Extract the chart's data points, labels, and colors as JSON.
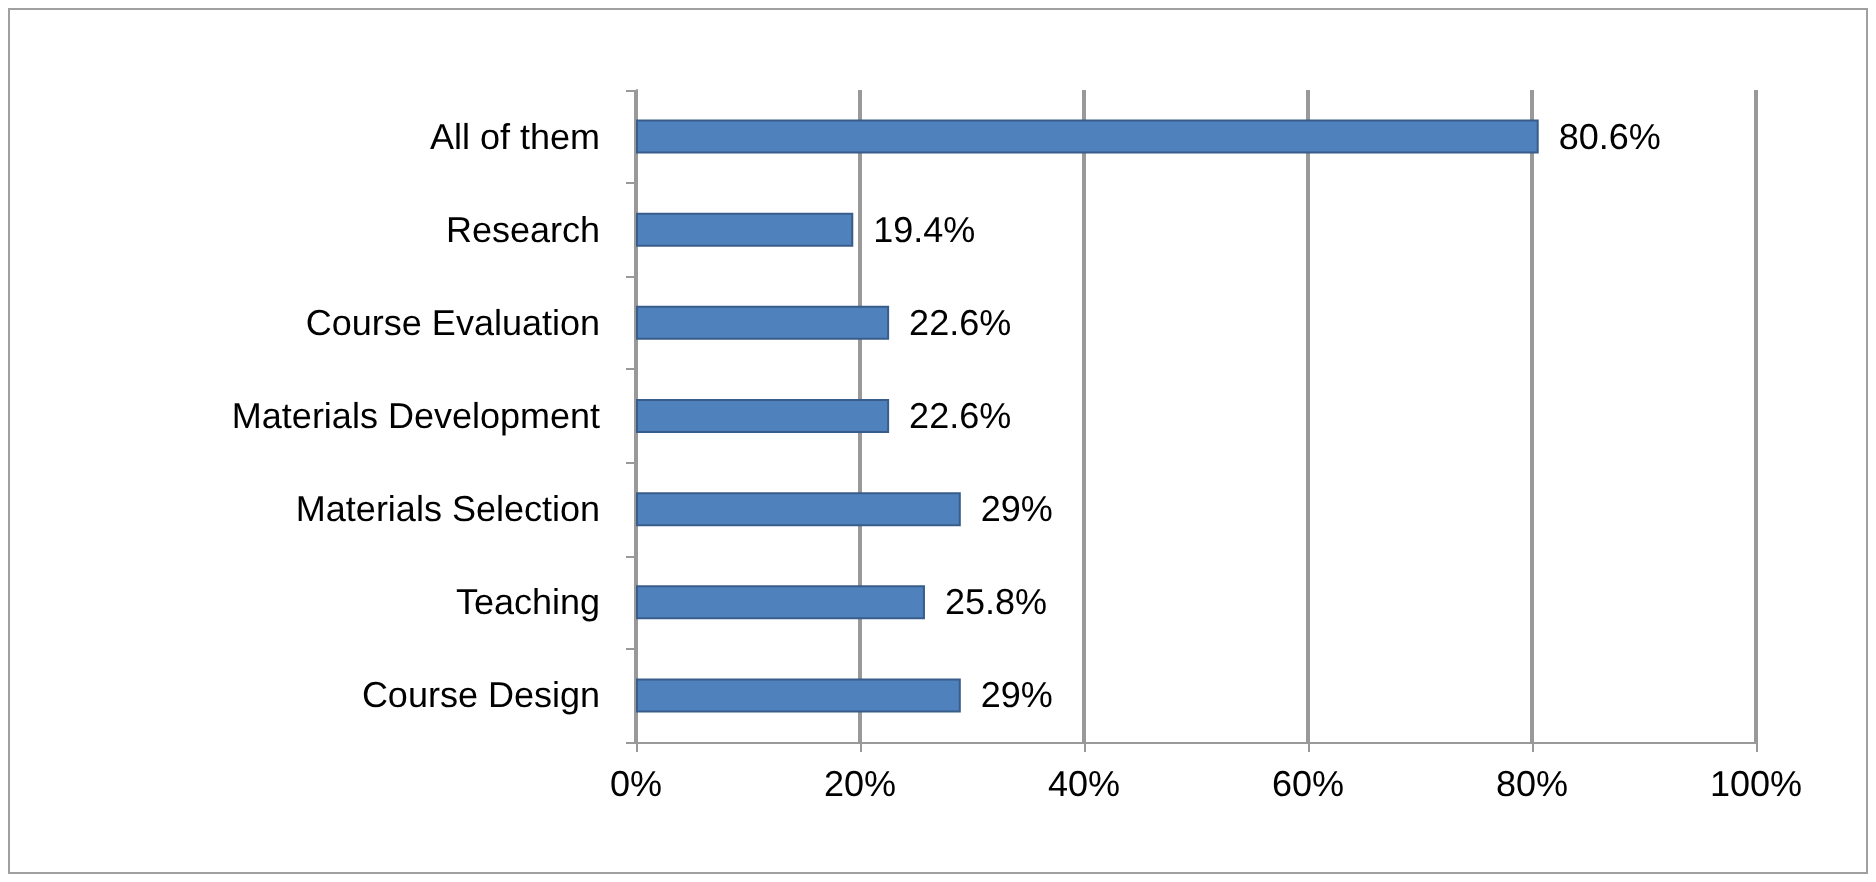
{
  "chart_data": {
    "type": "bar",
    "orientation": "horizontal",
    "categories": [
      "All of them",
      "Research",
      "Course Evaluation",
      "Materials Development",
      "Materials Selection",
      "Teaching",
      "Course Design"
    ],
    "values": [
      80.6,
      19.4,
      22.6,
      22.6,
      29,
      25.8,
      29
    ],
    "value_labels": [
      "80.6%",
      "19.4%",
      "22.6%",
      "22.6%",
      "29%",
      "25.8%",
      "29%"
    ],
    "color": "#4f81bd",
    "xlim": [
      0,
      100
    ],
    "xticks": [
      {
        "value": 0,
        "label": "0%"
      },
      {
        "value": 20,
        "label": "20%"
      },
      {
        "value": 40,
        "label": "40%"
      },
      {
        "value": 60,
        "label": "60%"
      },
      {
        "value": 80,
        "label": "80%"
      },
      {
        "value": 100,
        "label": "100%"
      }
    ],
    "grid": "x"
  }
}
